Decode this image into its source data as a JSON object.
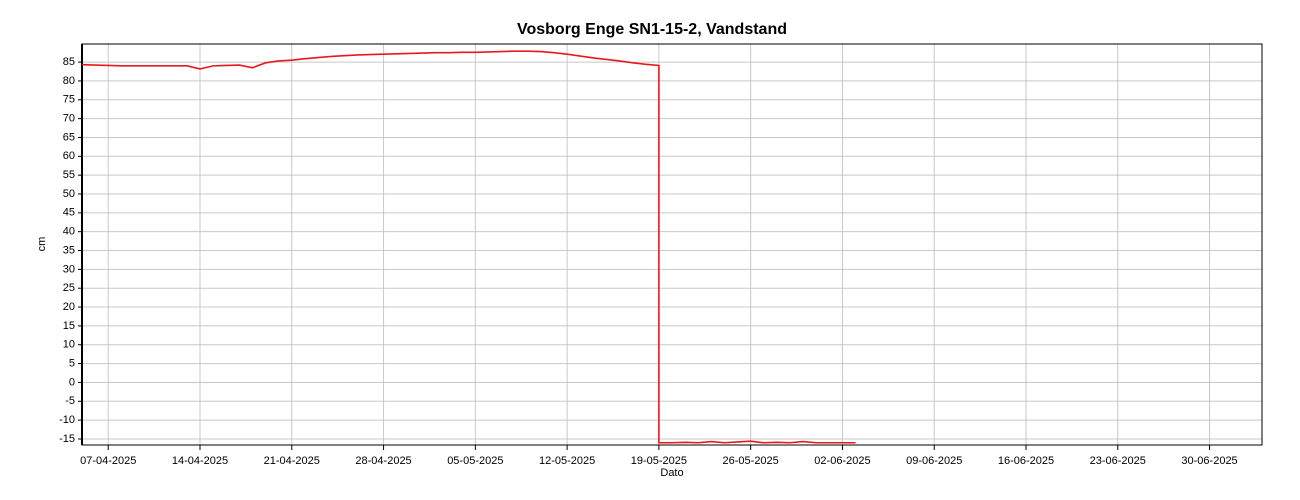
{
  "chart_data": {
    "type": "line",
    "title": "Vosborg Enge SN1-15-2, Vandstand",
    "xlabel": "Dato",
    "ylabel": "cm",
    "x": [
      "2025-04-05",
      "2025-04-06",
      "2025-04-07",
      "2025-04-08",
      "2025-04-09",
      "2025-04-10",
      "2025-04-11",
      "2025-04-12",
      "2025-04-13",
      "2025-04-14",
      "2025-04-15",
      "2025-04-16",
      "2025-04-17",
      "2025-04-18",
      "2025-04-19",
      "2025-04-20",
      "2025-04-21",
      "2025-04-22",
      "2025-04-23",
      "2025-04-24",
      "2025-04-25",
      "2025-04-26",
      "2025-04-27",
      "2025-04-28",
      "2025-04-29",
      "2025-04-30",
      "2025-05-01",
      "2025-05-02",
      "2025-05-03",
      "2025-05-04",
      "2025-05-05",
      "2025-05-06",
      "2025-05-07",
      "2025-05-08",
      "2025-05-09",
      "2025-05-10",
      "2025-05-11",
      "2025-05-12",
      "2025-05-13",
      "2025-05-14",
      "2025-05-15",
      "2025-05-16",
      "2025-05-17",
      "2025-05-18",
      "2025-05-19",
      "2025-05-19",
      "2025-05-20",
      "2025-05-21",
      "2025-05-22",
      "2025-05-23",
      "2025-05-24",
      "2025-05-25",
      "2025-05-26",
      "2025-05-27",
      "2025-05-28",
      "2025-05-29",
      "2025-05-30",
      "2025-05-31",
      "2025-06-01",
      "2025-06-02",
      "2025-06-03"
    ],
    "series": [
      {
        "name": "Vandstand",
        "color": "#e8191a",
        "values": [
          84.3,
          84.2,
          84.1,
          84.0,
          84.0,
          84.0,
          84.0,
          84.0,
          84.0,
          83.2,
          84.0,
          84.1,
          84.2,
          83.5,
          84.8,
          85.3,
          85.5,
          85.9,
          86.2,
          86.5,
          86.7,
          86.9,
          87.0,
          87.1,
          87.2,
          87.3,
          87.4,
          87.5,
          87.5,
          87.6,
          87.6,
          87.7,
          87.8,
          87.9,
          87.9,
          87.8,
          87.5,
          87.1,
          86.6,
          86.1,
          85.7,
          85.3,
          84.8,
          84.4,
          84.1,
          -16.0,
          -16.0,
          -15.9,
          -16.0,
          -15.7,
          -16.0,
          -15.8,
          -15.6,
          -16.0,
          -15.9,
          -16.0,
          -15.7,
          -16.0,
          -16.0,
          -16.0,
          -16.0
        ]
      }
    ],
    "xlim": [
      "2025-04-05",
      "2025-07-04"
    ],
    "xticks": [
      {
        "value": "2025-04-07",
        "label": "07-04-2025"
      },
      {
        "value": "2025-04-14",
        "label": "14-04-2025"
      },
      {
        "value": "2025-04-21",
        "label": "21-04-2025"
      },
      {
        "value": "2025-04-28",
        "label": "28-04-2025"
      },
      {
        "value": "2025-05-05",
        "label": "05-05-2025"
      },
      {
        "value": "2025-05-12",
        "label": "12-05-2025"
      },
      {
        "value": "2025-05-19",
        "label": "19-05-2025"
      },
      {
        "value": "2025-05-26",
        "label": "26-05-2025"
      },
      {
        "value": "2025-06-02",
        "label": "02-06-2025"
      },
      {
        "value": "2025-06-09",
        "label": "09-06-2025"
      },
      {
        "value": "2025-06-16",
        "label": "16-06-2025"
      },
      {
        "value": "2025-06-23",
        "label": "23-06-2025"
      },
      {
        "value": "2025-06-30",
        "label": "30-06-2025"
      }
    ],
    "ylim": [
      -16.6,
      89.8
    ],
    "yticks": [
      -15,
      -10,
      -5,
      0,
      5,
      10,
      15,
      20,
      25,
      30,
      35,
      40,
      45,
      50,
      55,
      60,
      65,
      70,
      75,
      80,
      85
    ],
    "grid": true
  }
}
